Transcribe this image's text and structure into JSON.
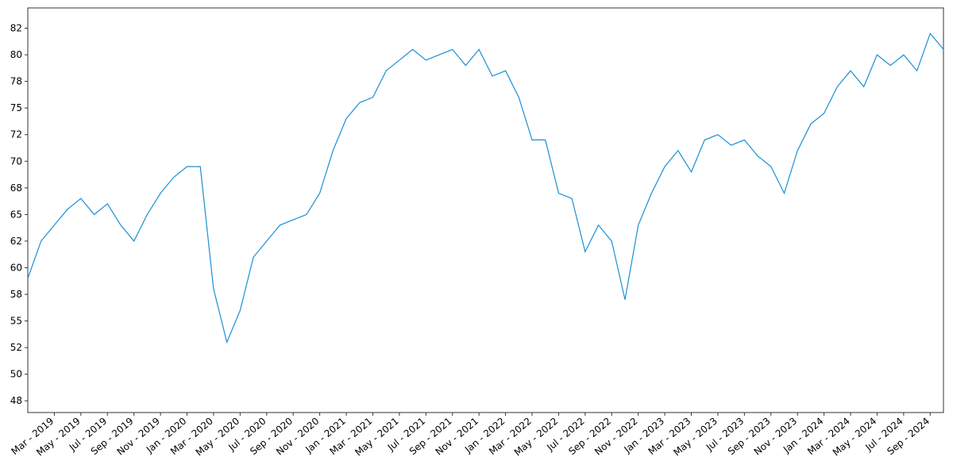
{
  "chart_data": {
    "type": "line",
    "x": [
      "2019-01",
      "2019-02",
      "2019-03",
      "2019-04",
      "2019-05",
      "2019-06",
      "2019-07",
      "2019-08",
      "2019-09",
      "2019-10",
      "2019-11",
      "2019-12",
      "2020-01",
      "2020-02",
      "2020-03",
      "2020-04",
      "2020-05",
      "2020-06",
      "2020-07",
      "2020-08",
      "2020-09",
      "2020-10",
      "2020-11",
      "2020-12",
      "2021-01",
      "2021-02",
      "2021-03",
      "2021-04",
      "2021-05",
      "2021-06",
      "2021-07",
      "2021-08",
      "2021-09",
      "2021-10",
      "2021-11",
      "2021-12",
      "2022-01",
      "2022-02",
      "2022-03",
      "2022-04",
      "2022-05",
      "2022-06",
      "2022-07",
      "2022-08",
      "2022-09",
      "2022-10",
      "2022-11",
      "2022-12",
      "2023-01",
      "2023-02",
      "2023-03",
      "2023-04",
      "2023-05",
      "2023-06",
      "2023-07",
      "2023-08",
      "2023-09",
      "2023-10",
      "2023-11",
      "2023-12",
      "2024-01",
      "2024-02",
      "2024-03",
      "2024-04",
      "2024-05",
      "2024-06",
      "2024-07",
      "2024-08",
      "2024-09",
      "2024-10"
    ],
    "values": [
      59,
      62.5,
      64,
      65.5,
      66.5,
      65,
      66,
      64,
      62.5,
      65,
      67,
      68.5,
      69.5,
      69.5,
      58,
      53,
      56,
      61,
      62.5,
      64,
      64.5,
      65,
      67,
      71,
      74,
      75.5,
      76,
      78.5,
      79.5,
      80.5,
      79.5,
      80,
      80.5,
      79,
      80.5,
      78,
      78.5,
      76,
      72,
      72,
      67,
      66.5,
      61.5,
      64,
      62.5,
      57,
      64,
      67,
      69.5,
      71,
      69,
      72,
      72.5,
      71.5,
      72,
      70.5,
      69.5,
      67,
      71,
      73.5,
      74.5,
      77,
      78.5,
      77,
      80,
      79,
      80,
      78.5,
      82,
      80.5
    ],
    "color": "#1a8fd6",
    "xlim": [
      "2019-01",
      "2024-10"
    ],
    "xticks": [
      {
        "value": "2019-03",
        "label": "Mar - 2019"
      },
      {
        "value": "2019-05",
        "label": "May - 2019"
      },
      {
        "value": "2019-07",
        "label": "Jul - 2019"
      },
      {
        "value": "2019-09",
        "label": "Sep - 2019"
      },
      {
        "value": "2019-11",
        "label": "Nov - 2019"
      },
      {
        "value": "2020-01",
        "label": "Jan - 2020"
      },
      {
        "value": "2020-03",
        "label": "Mar - 2020"
      },
      {
        "value": "2020-05",
        "label": "May - 2020"
      },
      {
        "value": "2020-07",
        "label": "Jul - 2020"
      },
      {
        "value": "2020-09",
        "label": "Sep - 2020"
      },
      {
        "value": "2020-11",
        "label": "Nov - 2020"
      },
      {
        "value": "2021-01",
        "label": "Jan - 2021"
      },
      {
        "value": "2021-03",
        "label": "Mar - 2021"
      },
      {
        "value": "2021-05",
        "label": "May - 2021"
      },
      {
        "value": "2021-07",
        "label": "Jul - 2021"
      },
      {
        "value": "2021-09",
        "label": "Sep - 2021"
      },
      {
        "value": "2021-11",
        "label": "Nov - 2021"
      },
      {
        "value": "2022-01",
        "label": "Jan - 2022"
      },
      {
        "value": "2022-03",
        "label": "Mar - 2022"
      },
      {
        "value": "2022-05",
        "label": "May - 2022"
      },
      {
        "value": "2022-07",
        "label": "Jul - 2022"
      },
      {
        "value": "2022-09",
        "label": "Sep - 2022"
      },
      {
        "value": "2022-11",
        "label": "Nov - 2022"
      },
      {
        "value": "2023-01",
        "label": "Jan - 2023"
      },
      {
        "value": "2023-03",
        "label": "Mar - 2023"
      },
      {
        "value": "2023-05",
        "label": "May - 2023"
      },
      {
        "value": "2023-07",
        "label": "Jul - 2023"
      },
      {
        "value": "2023-09",
        "label": "Sep - 2023"
      },
      {
        "value": "2023-11",
        "label": "Nov - 2023"
      },
      {
        "value": "2024-01",
        "label": "Jan - 2024"
      },
      {
        "value": "2024-03",
        "label": "Mar - 2024"
      },
      {
        "value": "2024-05",
        "label": "May - 2024"
      },
      {
        "value": "2024-07",
        "label": "Jul - 2024"
      },
      {
        "value": "2024-09",
        "label": "Sep - 2024"
      }
    ],
    "ylim": [
      46.4,
      84.4
    ],
    "yticks": [
      {
        "value": 47.5,
        "label": "48"
      },
      50,
      {
        "value": 52.5,
        "label": "52"
      },
      55,
      {
        "value": 57.5,
        "label": "58"
      },
      60,
      {
        "value": 62.5,
        "label": "62"
      },
      65,
      {
        "value": 67.5,
        "label": "68"
      },
      70,
      {
        "value": 72.5,
        "label": "72"
      },
      75,
      {
        "value": 77.5,
        "label": "78"
      },
      80,
      {
        "value": 82.5,
        "label": "82"
      }
    ],
    "grid": false
  }
}
